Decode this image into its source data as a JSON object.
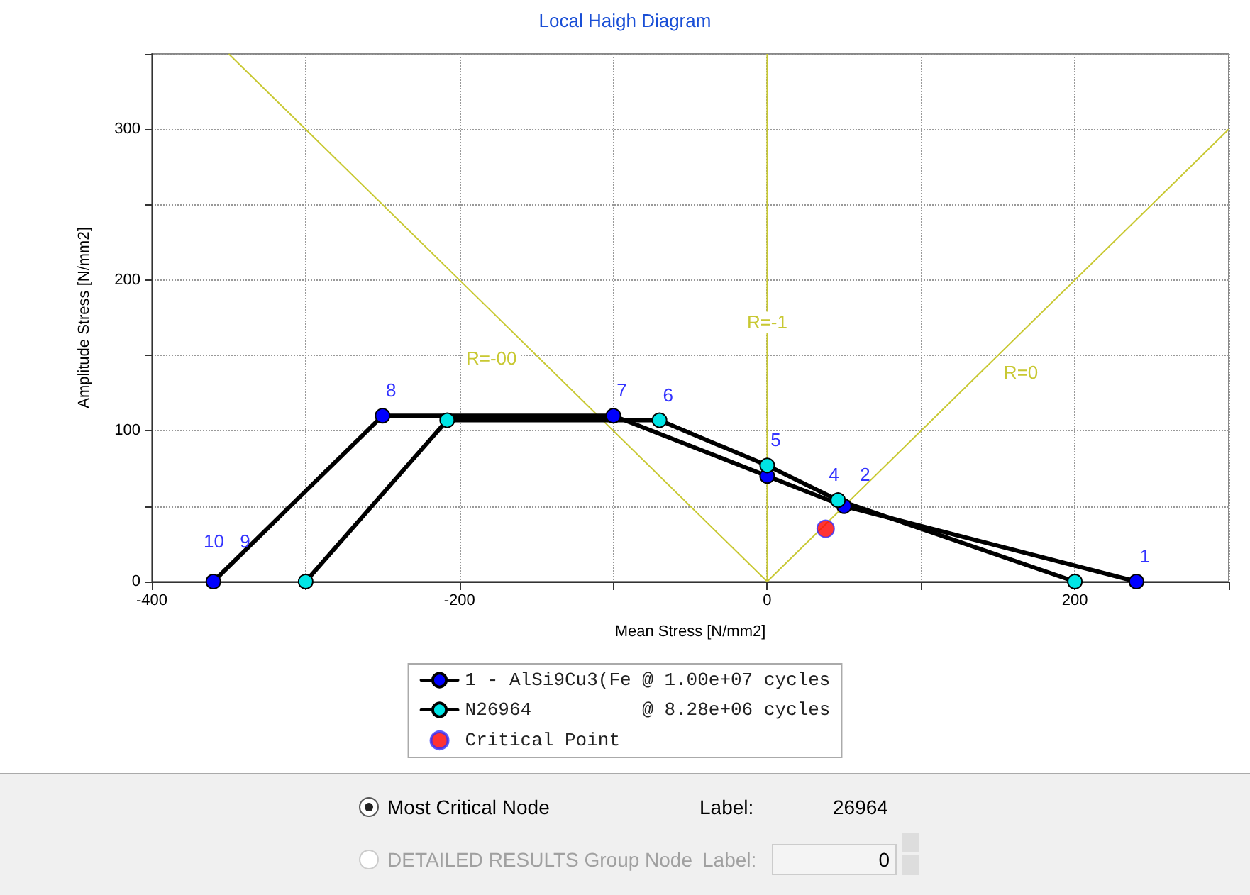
{
  "chart_data": {
    "type": "line",
    "title": "Local Haigh Diagram",
    "xlabel": "Mean Stress [N/mm2]",
    "ylabel": "Amplitude Stress [N/mm2]",
    "xlim": [
      -400,
      300
    ],
    "xticks": [
      -400,
      {
        "value": -300,
        "label": null
      },
      -200,
      {
        "value": -100,
        "label": null
      },
      0,
      {
        "value": 100,
        "label": null
      },
      200,
      {
        "value": 300,
        "label": null
      }
    ],
    "ylim": [
      0,
      350
    ],
    "yticks": [
      0,
      {
        "value": 50,
        "label": null
      },
      100,
      {
        "value": 150,
        "label": null
      },
      200,
      {
        "value": 250,
        "label": null
      },
      300,
      {
        "value": 350,
        "label": null
      }
    ],
    "series": [
      {
        "name": "1 - AlSi9Cu3(Fe @ 1.00e+07 cycles",
        "color": "#0000ff",
        "x": [
          240,
          50,
          0,
          -100,
          -250,
          -360
        ],
        "values": [
          0,
          50,
          70,
          110,
          110,
          0
        ]
      },
      {
        "name": "N26964          @ 8.28e+06 cycles",
        "color": "#00e5e5",
        "x": [
          200,
          46,
          0,
          -70,
          -208,
          -300
        ],
        "values": [
          0,
          54,
          77,
          107,
          107,
          0
        ]
      },
      {
        "name": "Critical Point",
        "type": "scatter",
        "color": "#ff0000",
        "x": [
          38
        ],
        "values": [
          35
        ]
      },
      {
        "name": "R=-00",
        "color": "#c8c832",
        "marker": "none",
        "x": [
          -350,
          -148,
          0
        ],
        "values": [
          350,
          148,
          0
        ]
      },
      {
        "name": "R=-1",
        "color": "#c8c832",
        "marker": "none",
        "x": [
          0,
          0,
          0
        ],
        "values": [
          0,
          172,
          350
        ]
      },
      {
        "name": "R=0",
        "color": "#c8c832",
        "marker": "none",
        "x": [
          0,
          139,
          300
        ],
        "values": [
          0,
          139,
          300
        ]
      }
    ],
    "annotations": [
      {
        "text": "1",
        "x": 240,
        "y": 0
      },
      {
        "text": "2",
        "x": 50,
        "y": 50
      },
      {
        "text": "4",
        "x": 46,
        "y": 54
      },
      {
        "text": "5",
        "x": 0,
        "y": 77
      },
      {
        "text": "6",
        "x": -70,
        "y": 107
      },
      {
        "text": "7",
        "x": -100,
        "y": 110
      },
      {
        "text": "8",
        "x": -250,
        "y": 110
      },
      {
        "text": "9",
        "x": -350,
        "y": 10
      },
      {
        "text": "10",
        "x": -360,
        "y": 0
      },
      "Most Critical Node",
      "Label:",
      "26964",
      "DETAILED RESULTS Group Node",
      "Label:",
      "0"
    ],
    "grid": true,
    "legend": "bottom",
    "marker": "circle",
    "line_style": "solid"
  }
}
